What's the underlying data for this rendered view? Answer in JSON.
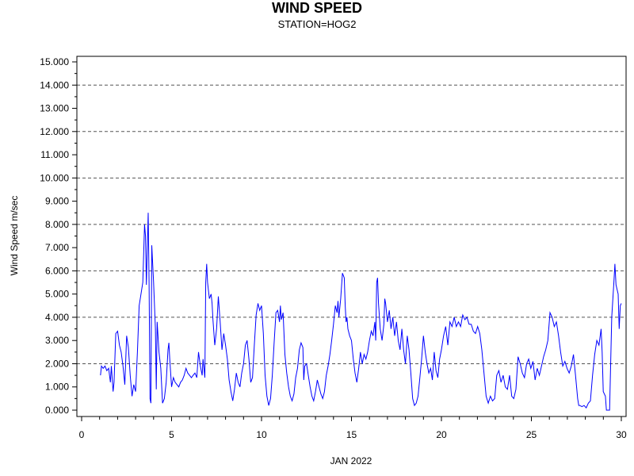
{
  "chart_data": {
    "type": "line",
    "title": "WIND SPEED",
    "subtitle": "STATION=HOG2",
    "xlabel": "JAN 2022",
    "ylabel": "Wind Speed m/sec",
    "xlim": [
      0,
      30.3
    ],
    "ylim": [
      0,
      15
    ],
    "x_ticks": [
      0,
      5,
      10,
      15,
      20,
      25,
      30
    ],
    "y_ticks": [
      "0.000",
      "1.000",
      "2.000",
      "3.000",
      "4.000",
      "5.000",
      "6.000",
      "7.000",
      "8.000",
      "9.000",
      "10.000",
      "11.000",
      "12.000",
      "13.000",
      "14.000",
      "15.000"
    ],
    "grid": "horizontal dashed at major y ticks",
    "series": [
      {
        "color": "#0000ff",
        "points": [
          [
            1.05,
            1.5
          ],
          [
            1.1,
            1.9
          ],
          [
            1.2,
            1.8
          ],
          [
            1.3,
            1.9
          ],
          [
            1.4,
            1.7
          ],
          [
            1.5,
            1.8
          ],
          [
            1.6,
            1.2
          ],
          [
            1.65,
            1.9
          ],
          [
            1.75,
            0.8
          ],
          [
            1.8,
            1.2
          ],
          [
            1.9,
            3.3
          ],
          [
            2.0,
            3.4
          ],
          [
            2.1,
            2.8
          ],
          [
            2.2,
            2.5
          ],
          [
            2.3,
            1.9
          ],
          [
            2.4,
            1.1
          ],
          [
            2.5,
            3.2
          ],
          [
            2.6,
            2.7
          ],
          [
            2.7,
            1.5
          ],
          [
            2.8,
            0.6
          ],
          [
            2.9,
            1.1
          ],
          [
            3.0,
            0.8
          ],
          [
            3.1,
            2.5
          ],
          [
            3.2,
            4.5
          ],
          [
            3.3,
            5.0
          ],
          [
            3.4,
            5.5
          ],
          [
            3.5,
            8.0
          ],
          [
            3.55,
            7.5
          ],
          [
            3.6,
            5.4
          ],
          [
            3.7,
            8.5
          ],
          [
            3.75,
            5.5
          ],
          [
            3.8,
            0.5
          ],
          [
            3.85,
            0.3
          ],
          [
            3.9,
            7.1
          ],
          [
            4.0,
            5.5
          ],
          [
            4.1,
            3.5
          ],
          [
            4.15,
            0.9
          ],
          [
            4.2,
            3.8
          ],
          [
            4.3,
            2.5
          ],
          [
            4.4,
            1.8
          ],
          [
            4.5,
            0.3
          ],
          [
            4.6,
            0.5
          ],
          [
            4.7,
            1.2
          ],
          [
            4.8,
            2.6
          ],
          [
            4.85,
            2.9
          ],
          [
            4.9,
            2.2
          ],
          [
            5.0,
            1.0
          ],
          [
            5.1,
            1.4
          ],
          [
            5.2,
            1.2
          ],
          [
            5.3,
            1.1
          ],
          [
            5.4,
            1.0
          ],
          [
            5.5,
            1.2
          ],
          [
            5.6,
            1.3
          ],
          [
            5.7,
            1.5
          ],
          [
            5.8,
            1.8
          ],
          [
            5.9,
            1.6
          ],
          [
            6.0,
            1.5
          ],
          [
            6.1,
            1.4
          ],
          [
            6.2,
            1.5
          ],
          [
            6.3,
            1.6
          ],
          [
            6.4,
            1.4
          ],
          [
            6.5,
            2.5
          ],
          [
            6.6,
            1.9
          ],
          [
            6.7,
            1.5
          ],
          [
            6.75,
            2.2
          ],
          [
            6.85,
            1.4
          ],
          [
            6.9,
            5.5
          ],
          [
            6.95,
            6.3
          ],
          [
            7.0,
            5.5
          ],
          [
            7.1,
            4.8
          ],
          [
            7.2,
            5.0
          ],
          [
            7.25,
            4.6
          ],
          [
            7.3,
            3.9
          ],
          [
            7.4,
            2.8
          ],
          [
            7.5,
            3.5
          ],
          [
            7.6,
            4.9
          ],
          [
            7.7,
            3.8
          ],
          [
            7.8,
            2.6
          ],
          [
            7.9,
            3.3
          ],
          [
            8.0,
            2.8
          ],
          [
            8.1,
            2.2
          ],
          [
            8.2,
            1.3
          ],
          [
            8.3,
            0.8
          ],
          [
            8.4,
            0.4
          ],
          [
            8.5,
            0.9
          ],
          [
            8.6,
            1.6
          ],
          [
            8.7,
            1.2
          ],
          [
            8.8,
            1.0
          ],
          [
            8.9,
            1.6
          ],
          [
            9.0,
            2.0
          ],
          [
            9.1,
            2.8
          ],
          [
            9.2,
            3.0
          ],
          [
            9.3,
            2.2
          ],
          [
            9.4,
            1.2
          ],
          [
            9.5,
            1.4
          ],
          [
            9.6,
            2.8
          ],
          [
            9.7,
            4.1
          ],
          [
            9.8,
            4.6
          ],
          [
            9.9,
            4.3
          ],
          [
            10.0,
            4.5
          ],
          [
            10.1,
            3.3
          ],
          [
            10.2,
            1.5
          ],
          [
            10.3,
            0.6
          ],
          [
            10.4,
            0.2
          ],
          [
            10.5,
            0.5
          ],
          [
            10.6,
            1.5
          ],
          [
            10.7,
            2.9
          ],
          [
            10.8,
            4.2
          ],
          [
            10.9,
            4.3
          ],
          [
            11.0,
            3.8
          ],
          [
            11.05,
            4.5
          ],
          [
            11.1,
            3.9
          ],
          [
            11.2,
            4.2
          ],
          [
            11.3,
            2.4
          ],
          [
            11.4,
            1.6
          ],
          [
            11.5,
            1.0
          ],
          [
            11.6,
            0.6
          ],
          [
            11.7,
            0.4
          ],
          [
            11.8,
            0.7
          ],
          [
            11.9,
            1.4
          ],
          [
            12.0,
            1.8
          ],
          [
            12.1,
            2.6
          ],
          [
            12.2,
            2.9
          ],
          [
            12.3,
            2.7
          ],
          [
            12.35,
            1.3
          ],
          [
            12.4,
            1.9
          ],
          [
            12.5,
            2.0
          ],
          [
            12.6,
            1.5
          ],
          [
            12.7,
            1.0
          ],
          [
            12.8,
            0.6
          ],
          [
            12.9,
            0.4
          ],
          [
            13.0,
            0.8
          ],
          [
            13.1,
            1.3
          ],
          [
            13.2,
            1.0
          ],
          [
            13.3,
            0.7
          ],
          [
            13.4,
            0.5
          ],
          [
            13.5,
            0.8
          ],
          [
            13.6,
            1.5
          ],
          [
            13.7,
            1.9
          ],
          [
            13.8,
            2.4
          ],
          [
            13.9,
            3.0
          ],
          [
            14.0,
            3.7
          ],
          [
            14.1,
            4.5
          ],
          [
            14.2,
            4.2
          ],
          [
            14.25,
            4.7
          ],
          [
            14.3,
            4.0
          ],
          [
            14.4,
            4.8
          ],
          [
            14.5,
            5.9
          ],
          [
            14.6,
            5.7
          ],
          [
            14.65,
            4.5
          ],
          [
            14.7,
            3.8
          ],
          [
            14.75,
            4.0
          ],
          [
            14.8,
            3.5
          ],
          [
            14.9,
            3.2
          ],
          [
            15.0,
            3.0
          ],
          [
            15.1,
            2.2
          ],
          [
            15.2,
            1.6
          ],
          [
            15.3,
            1.2
          ],
          [
            15.4,
            1.8
          ],
          [
            15.5,
            2.5
          ],
          [
            15.6,
            2.0
          ],
          [
            15.7,
            2.4
          ],
          [
            15.8,
            2.2
          ],
          [
            15.9,
            2.5
          ],
          [
            16.0,
            3.0
          ],
          [
            16.1,
            3.4
          ],
          [
            16.2,
            3.2
          ],
          [
            16.3,
            3.8
          ],
          [
            16.35,
            3.0
          ],
          [
            16.4,
            5.5
          ],
          [
            16.45,
            5.7
          ],
          [
            16.5,
            4.6
          ],
          [
            16.6,
            3.5
          ],
          [
            16.7,
            3.0
          ],
          [
            16.8,
            3.7
          ],
          [
            16.85,
            4.8
          ],
          [
            16.9,
            4.6
          ],
          [
            17.0,
            3.8
          ],
          [
            17.1,
            4.3
          ],
          [
            17.2,
            3.5
          ],
          [
            17.3,
            4.0
          ],
          [
            17.4,
            3.2
          ],
          [
            17.5,
            3.8
          ],
          [
            17.6,
            3.0
          ],
          [
            17.7,
            2.6
          ],
          [
            17.8,
            3.5
          ],
          [
            17.9,
            2.6
          ],
          [
            18.0,
            2.0
          ],
          [
            18.1,
            3.2
          ],
          [
            18.2,
            2.6
          ],
          [
            18.3,
            1.6
          ],
          [
            18.4,
            0.5
          ],
          [
            18.5,
            0.2
          ],
          [
            18.6,
            0.3
          ],
          [
            18.7,
            0.6
          ],
          [
            18.8,
            1.4
          ],
          [
            18.9,
            2.2
          ],
          [
            19.0,
            3.2
          ],
          [
            19.1,
            2.5
          ],
          [
            19.2,
            2.0
          ],
          [
            19.3,
            1.6
          ],
          [
            19.4,
            1.8
          ],
          [
            19.5,
            1.3
          ],
          [
            19.6,
            2.5
          ],
          [
            19.7,
            1.7
          ],
          [
            19.8,
            1.4
          ],
          [
            19.9,
            2.2
          ],
          [
            20.0,
            2.6
          ],
          [
            20.1,
            3.2
          ],
          [
            20.2,
            3.6
          ],
          [
            20.3,
            2.8
          ],
          [
            20.4,
            3.8
          ],
          [
            20.5,
            3.6
          ],
          [
            20.6,
            4.0
          ],
          [
            20.7,
            3.6
          ],
          [
            20.8,
            3.8
          ],
          [
            20.9,
            3.6
          ],
          [
            21.0,
            4.1
          ],
          [
            21.1,
            3.9
          ],
          [
            21.2,
            4.0
          ],
          [
            21.3,
            3.7
          ],
          [
            21.4,
            3.7
          ],
          [
            21.5,
            3.4
          ],
          [
            21.6,
            3.3
          ],
          [
            21.7,
            3.6
          ],
          [
            21.8,
            3.3
          ],
          [
            21.9,
            2.6
          ],
          [
            22.0,
            1.6
          ],
          [
            22.1,
            0.6
          ],
          [
            22.2,
            0.3
          ],
          [
            22.3,
            0.6
          ],
          [
            22.4,
            0.4
          ],
          [
            22.5,
            0.5
          ],
          [
            22.6,
            1.5
          ],
          [
            22.7,
            1.7
          ],
          [
            22.8,
            1.2
          ],
          [
            22.9,
            1.5
          ],
          [
            23.0,
            1.0
          ],
          [
            23.1,
            0.9
          ],
          [
            23.2,
            1.5
          ],
          [
            23.3,
            0.6
          ],
          [
            23.4,
            0.5
          ],
          [
            23.5,
            0.9
          ],
          [
            23.6,
            2.3
          ],
          [
            23.7,
            2.0
          ],
          [
            23.8,
            1.6
          ],
          [
            23.9,
            1.4
          ],
          [
            24.0,
            2.0
          ],
          [
            24.1,
            2.2
          ],
          [
            24.2,
            1.8
          ],
          [
            24.3,
            2.1
          ],
          [
            24.4,
            1.3
          ],
          [
            24.5,
            1.8
          ],
          [
            24.6,
            1.5
          ],
          [
            24.7,
            1.9
          ],
          [
            24.8,
            2.3
          ],
          [
            24.9,
            2.6
          ],
          [
            25.0,
            3.0
          ],
          [
            25.1,
            4.2
          ],
          [
            25.2,
            4.0
          ],
          [
            25.3,
            3.6
          ],
          [
            25.4,
            3.8
          ],
          [
            25.5,
            3.2
          ],
          [
            25.6,
            2.5
          ],
          [
            25.7,
            1.9
          ],
          [
            25.8,
            2.1
          ],
          [
            25.9,
            1.8
          ],
          [
            26.0,
            1.6
          ],
          [
            26.1,
            1.9
          ],
          [
            26.2,
            2.4
          ],
          [
            26.3,
            1.5
          ],
          [
            26.4,
            0.5
          ],
          [
            26.45,
            0.2
          ],
          [
            26.5,
            0.2
          ],
          [
            26.6,
            0.15
          ],
          [
            26.7,
            0.2
          ],
          [
            26.8,
            0.1
          ],
          [
            26.9,
            0.3
          ],
          [
            27.0,
            0.4
          ],
          [
            27.1,
            1.5
          ],
          [
            27.2,
            2.4
          ],
          [
            27.3,
            3.0
          ],
          [
            27.4,
            2.8
          ],
          [
            27.5,
            3.5
          ],
          [
            27.55,
            2.5
          ],
          [
            27.6,
            0.8
          ],
          [
            27.7,
            0.6
          ],
          [
            27.75,
            0.0
          ],
          [
            27.9,
            0.0
          ],
          [
            28.0,
            4.0
          ],
          [
            28.1,
            5.5
          ],
          [
            28.15,
            6.3
          ],
          [
            28.2,
            5.4
          ],
          [
            28.3,
            5.0
          ],
          [
            28.35,
            3.5
          ],
          [
            28.4,
            4.5
          ],
          [
            28.45,
            4.6
          ]
        ]
      }
    ]
  }
}
